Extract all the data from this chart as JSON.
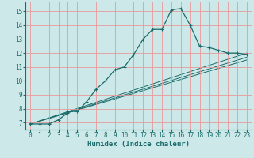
{
  "xlabel": "Humidex (Indice chaleur)",
  "background_color": "#cce8e8",
  "grid_color": "#e89898",
  "line_color": "#1a6b6b",
  "xlim": [
    -0.5,
    23.5
  ],
  "ylim": [
    6.5,
    15.7
  ],
  "xticks": [
    0,
    1,
    2,
    3,
    4,
    5,
    6,
    7,
    8,
    9,
    10,
    11,
    12,
    13,
    14,
    15,
    16,
    17,
    18,
    19,
    20,
    21,
    22,
    23
  ],
  "yticks": [
    7,
    8,
    9,
    10,
    11,
    12,
    13,
    14,
    15
  ],
  "curve1_x": [
    0,
    1,
    2,
    3,
    4,
    4,
    5,
    6,
    7,
    8,
    9,
    10,
    11,
    12,
    13,
    14,
    15,
    16,
    17,
    18,
    19,
    20,
    21,
    22,
    23
  ],
  "curve1_y": [
    6.9,
    6.9,
    6.9,
    7.2,
    7.7,
    7.8,
    7.8,
    8.5,
    9.4,
    10.0,
    10.8,
    11.0,
    11.9,
    13.0,
    13.7,
    13.7,
    15.1,
    15.2,
    14.0,
    12.5,
    12.4,
    12.2,
    12.0,
    12.0,
    11.9
  ],
  "curve2_x": [
    0,
    23
  ],
  "curve2_y": [
    6.9,
    12.0
  ],
  "curve3_x": [
    0,
    23
  ],
  "curve3_y": [
    6.9,
    11.7
  ],
  "curve4_x": [
    0,
    23
  ],
  "curve4_y": [
    6.9,
    11.5
  ]
}
